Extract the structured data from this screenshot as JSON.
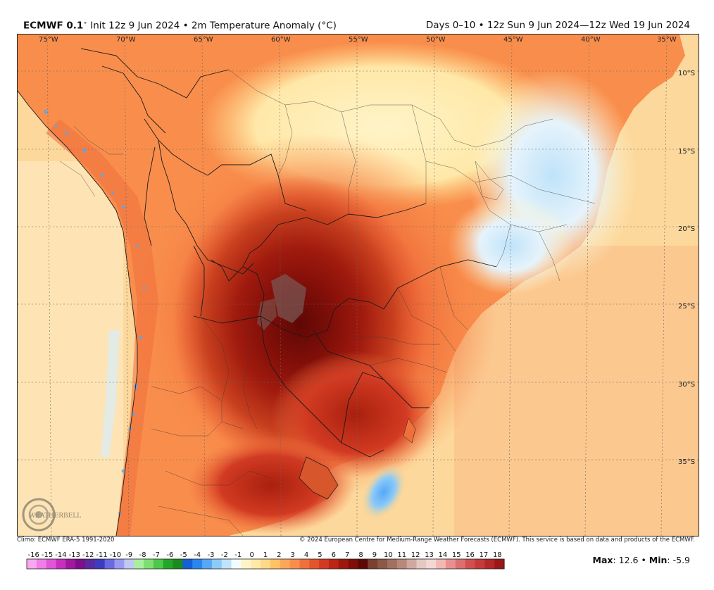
{
  "header": {
    "model": "ECMWF 0.1",
    "init_info": "Init 12z 9 Jun 2024 • 2m Temperature Anomaly (°C)",
    "valid_info": "Days 0–10 • 12z Sun 9 Jun 2024—12z Wed 19 Jun 2024"
  },
  "map": {
    "longitude_labels": [
      "75°W",
      "70°W",
      "65°W",
      "60°W",
      "55°W",
      "50°W",
      "45°W",
      "40°W",
      "35°W"
    ],
    "latitude_labels": [
      "10°S",
      "15°S",
      "20°S",
      "25°S",
      "30°S",
      "35°S"
    ],
    "watermark": "WEATHERBELL"
  },
  "credits": {
    "climo": "Climo: ECMWF ERA-5 1991-2020",
    "copyright": "© 2024 European Centre for Medium-Range Weather Forecasts (ECMWF). This service is based on data and products of the ECMWF."
  },
  "colorbar": {
    "ticks": [
      "-16",
      "-15",
      "-14",
      "-13",
      "-12",
      "-11",
      "-10",
      "-9",
      "-8",
      "-7",
      "-6",
      "-5",
      "-4",
      "-3",
      "-2",
      "-1",
      "0",
      "1",
      "2",
      "3",
      "4",
      "5",
      "6",
      "7",
      "8",
      "9",
      "10",
      "11",
      "12",
      "13",
      "14",
      "15",
      "16",
      "17",
      "18"
    ],
    "colors": [
      "#f9a8f0",
      "#f07ee6",
      "#e056d6",
      "#c82fbf",
      "#a0189d",
      "#7c0f8a",
      "#5a2aa0",
      "#3c3cc0",
      "#6a6ae0",
      "#9a9af0",
      "#c0c8f4",
      "#a8f0a0",
      "#7ede72",
      "#4cc84a",
      "#22a628",
      "#1d8a20",
      "#1460d4",
      "#2a86ee",
      "#56a8f6",
      "#8ccaf8",
      "#bfe3fa",
      "#f4fbff",
      "#fff4c8",
      "#ffe8a8",
      "#ffd888",
      "#ffc266",
      "#fda65a",
      "#f98e4c",
      "#f0703c",
      "#e4552e",
      "#d23a22",
      "#bb2616",
      "#9c180e",
      "#7e0e08",
      "#5e0806",
      "#7a4030",
      "#8c5848",
      "#a07060",
      "#b8887a",
      "#cfa8a0",
      "#e4c8c2",
      "#f2d8d4",
      "#f2b8b4",
      "#e89090",
      "#dc7070",
      "#d05050",
      "#c43a3a",
      "#b02828",
      "#9a1818"
    ]
  },
  "summary": {
    "max_label": "Max",
    "max_value": "12.6",
    "min_label": "Min",
    "min_value": "-5.9"
  }
}
